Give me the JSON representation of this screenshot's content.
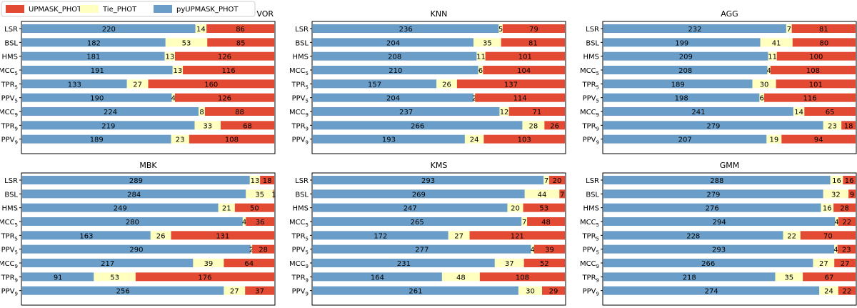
{
  "legend": {
    "entries": [
      {
        "label": "UPMASK_PHOT",
        "color": "#e34a33"
      },
      {
        "label": "Tie_PHOT",
        "color": "#ffffbf"
      },
      {
        "label": "pyUPMASK_PHOT",
        "color": "#6a9ec8"
      }
    ]
  },
  "chart_data": [
    {
      "type": "bar",
      "orientation": "horizontal-stacked",
      "title": "VOR",
      "categories": [
        {
          "base": "LSR",
          "sub": ""
        },
        {
          "base": "BSL",
          "sub": ""
        },
        {
          "base": "HMS",
          "sub": ""
        },
        {
          "base": "MCC",
          "sub": "5"
        },
        {
          "base": "TPR",
          "sub": "5"
        },
        {
          "base": "PPV",
          "sub": "5"
        },
        {
          "base": "MCC",
          "sub": "9"
        },
        {
          "base": "TPR",
          "sub": "9"
        },
        {
          "base": "PPV",
          "sub": "9"
        }
      ],
      "series": [
        {
          "name": "pyUPMASK_PHOT",
          "values": [
            220,
            182,
            181,
            191,
            133,
            190,
            224,
            219,
            189
          ]
        },
        {
          "name": "Tie_PHOT",
          "values": [
            14,
            53,
            13,
            13,
            27,
            4,
            8,
            33,
            23
          ]
        },
        {
          "name": "UPMASK_PHOT",
          "values": [
            86,
            85,
            126,
            116,
            160,
            126,
            88,
            68,
            108
          ]
        }
      ],
      "xlim": [
        0,
        320
      ]
    },
    {
      "type": "bar",
      "orientation": "horizontal-stacked",
      "title": "KNN",
      "categories": [
        {
          "base": "LSR",
          "sub": ""
        },
        {
          "base": "BSL",
          "sub": ""
        },
        {
          "base": "HMS",
          "sub": ""
        },
        {
          "base": "MCC",
          "sub": "5"
        },
        {
          "base": "TPR",
          "sub": "5"
        },
        {
          "base": "PPV",
          "sub": "5"
        },
        {
          "base": "MCC",
          "sub": "9"
        },
        {
          "base": "TPR",
          "sub": "9"
        },
        {
          "base": "PPV",
          "sub": "9"
        }
      ],
      "series": [
        {
          "name": "pyUPMASK_PHOT",
          "values": [
            236,
            204,
            208,
            210,
            157,
            204,
            237,
            266,
            193
          ]
        },
        {
          "name": "Tie_PHOT",
          "values": [
            5,
            35,
            11,
            6,
            26,
            2,
            12,
            28,
            24
          ]
        },
        {
          "name": "UPMASK_PHOT",
          "values": [
            79,
            81,
            101,
            104,
            137,
            114,
            71,
            26,
            103
          ]
        }
      ],
      "xlim": [
        0,
        320
      ]
    },
    {
      "type": "bar",
      "orientation": "horizontal-stacked",
      "title": "AGG",
      "categories": [
        {
          "base": "LSR",
          "sub": ""
        },
        {
          "base": "BSL",
          "sub": ""
        },
        {
          "base": "HMS",
          "sub": ""
        },
        {
          "base": "MCC",
          "sub": "5"
        },
        {
          "base": "TPR",
          "sub": "5"
        },
        {
          "base": "PPV",
          "sub": "5"
        },
        {
          "base": "MCC",
          "sub": "9"
        },
        {
          "base": "TPR",
          "sub": "9"
        },
        {
          "base": "PPV",
          "sub": "9"
        }
      ],
      "series": [
        {
          "name": "pyUPMASK_PHOT",
          "values": [
            232,
            199,
            209,
            208,
            189,
            198,
            241,
            279,
            207
          ]
        },
        {
          "name": "Tie_PHOT",
          "values": [
            7,
            41,
            11,
            4,
            30,
            6,
            14,
            23,
            19
          ]
        },
        {
          "name": "UPMASK_PHOT",
          "values": [
            81,
            80,
            100,
            108,
            101,
            116,
            65,
            18,
            94
          ]
        }
      ],
      "xlim": [
        0,
        320
      ]
    },
    {
      "type": "bar",
      "orientation": "horizontal-stacked",
      "title": "MBK",
      "categories": [
        {
          "base": "LSR",
          "sub": ""
        },
        {
          "base": "BSL",
          "sub": ""
        },
        {
          "base": "HMS",
          "sub": ""
        },
        {
          "base": "MCC",
          "sub": "5"
        },
        {
          "base": "TPR",
          "sub": "5"
        },
        {
          "base": "PPV",
          "sub": "5"
        },
        {
          "base": "MCC",
          "sub": "9"
        },
        {
          "base": "TPR",
          "sub": "9"
        },
        {
          "base": "PPV",
          "sub": "9"
        }
      ],
      "series": [
        {
          "name": "pyUPMASK_PHOT",
          "values": [
            289,
            284,
            249,
            280,
            163,
            290,
            217,
            91,
            256
          ]
        },
        {
          "name": "Tie_PHOT",
          "values": [
            13,
            35,
            21,
            4,
            26,
            2,
            39,
            53,
            27
          ]
        },
        {
          "name": "UPMASK_PHOT",
          "values": [
            18,
            1,
            50,
            36,
            131,
            28,
            64,
            176,
            37
          ]
        }
      ],
      "xlim": [
        0,
        320
      ]
    },
    {
      "type": "bar",
      "orientation": "horizontal-stacked",
      "title": "KMS",
      "categories": [
        {
          "base": "LSR",
          "sub": ""
        },
        {
          "base": "BSL",
          "sub": ""
        },
        {
          "base": "HMS",
          "sub": ""
        },
        {
          "base": "MCC",
          "sub": "5"
        },
        {
          "base": "TPR",
          "sub": "5"
        },
        {
          "base": "PPV",
          "sub": "5"
        },
        {
          "base": "MCC",
          "sub": "9"
        },
        {
          "base": "TPR",
          "sub": "9"
        },
        {
          "base": "PPV",
          "sub": "9"
        }
      ],
      "series": [
        {
          "name": "pyUPMASK_PHOT",
          "values": [
            293,
            269,
            247,
            265,
            172,
            277,
            231,
            164,
            261
          ]
        },
        {
          "name": "Tie_PHOT",
          "values": [
            7,
            44,
            20,
            7,
            27,
            4,
            37,
            48,
            30
          ]
        },
        {
          "name": "UPMASK_PHOT",
          "values": [
            20,
            7,
            53,
            48,
            121,
            39,
            52,
            108,
            29
          ]
        }
      ],
      "xlim": [
        0,
        320
      ]
    },
    {
      "type": "bar",
      "orientation": "horizontal-stacked",
      "title": "GMM",
      "categories": [
        {
          "base": "LSR",
          "sub": ""
        },
        {
          "base": "BSL",
          "sub": ""
        },
        {
          "base": "HMS",
          "sub": ""
        },
        {
          "base": "MCC",
          "sub": "5"
        },
        {
          "base": "TPR",
          "sub": "5"
        },
        {
          "base": "PPV",
          "sub": "5"
        },
        {
          "base": "MCC",
          "sub": "9"
        },
        {
          "base": "TPR",
          "sub": "9"
        },
        {
          "base": "PPV",
          "sub": "9"
        }
      ],
      "series": [
        {
          "name": "pyUPMASK_PHOT",
          "values": [
            288,
            279,
            276,
            294,
            228,
            293,
            266,
            218,
            274
          ]
        },
        {
          "name": "Tie_PHOT",
          "values": [
            16,
            32,
            16,
            4,
            22,
            4,
            27,
            35,
            24
          ]
        },
        {
          "name": "UPMASK_PHOT",
          "values": [
            16,
            9,
            28,
            22,
            70,
            23,
            27,
            67,
            22
          ]
        }
      ],
      "xlim": [
        0,
        320
      ]
    }
  ]
}
